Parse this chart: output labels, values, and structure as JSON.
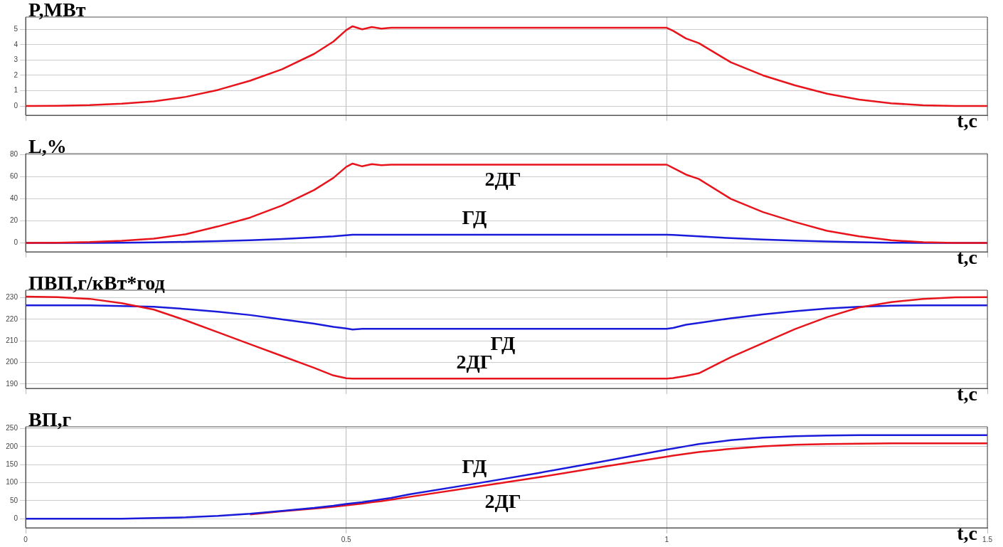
{
  "chart_data": [
    {
      "type": "line",
      "ylabel": "P,МВт",
      "xlabel": "t,с",
      "x": [
        0,
        0.05,
        0.1,
        0.15,
        0.2,
        0.25,
        0.3,
        0.35,
        0.4,
        0.45,
        0.48,
        0.5,
        0.51,
        0.525,
        0.54,
        0.555,
        0.57,
        0.6,
        0.7,
        0.8,
        0.9,
        1.0,
        1.01,
        1.03,
        1.05,
        1.1,
        1.15,
        1.2,
        1.25,
        1.3,
        1.35,
        1.4,
        1.45,
        1.5
      ],
      "series": [
        {
          "color": "#e8141b",
          "values": [
            0,
            0.02,
            0.06,
            0.15,
            0.3,
            0.6,
            1.05,
            1.65,
            2.4,
            3.4,
            4.2,
            4.95,
            5.2,
            5.0,
            5.15,
            5.05,
            5.1,
            5.1,
            5.1,
            5.1,
            5.1,
            5.1,
            4.9,
            4.4,
            4.1,
            2.85,
            2.0,
            1.35,
            0.8,
            0.42,
            0.18,
            0.05,
            0,
            0
          ]
        }
      ],
      "xlim": [
        0,
        1.5
      ],
      "xticks": [
        0,
        0.5,
        1,
        1.5
      ],
      "ylim": [
        -0.6,
        5.8
      ],
      "yticks": [
        0,
        1,
        2,
        3,
        4,
        5
      ],
      "grid": true,
      "tick_labels": "y"
    },
    {
      "type": "line",
      "ylabel": "L,%",
      "xlabel": "t,с",
      "x": [
        0,
        0.05,
        0.1,
        0.15,
        0.2,
        0.25,
        0.3,
        0.35,
        0.4,
        0.45,
        0.48,
        0.5,
        0.51,
        0.525,
        0.54,
        0.555,
        0.57,
        0.6,
        0.7,
        0.8,
        0.9,
        1.0,
        1.01,
        1.03,
        1.05,
        1.1,
        1.15,
        1.2,
        1.25,
        1.3,
        1.35,
        1.4,
        1.45,
        1.5
      ],
      "series": [
        {
          "name": "2ДГ",
          "color": "#e8141b",
          "values": [
            0,
            0.3,
            0.8,
            2,
            4,
            8,
            15,
            23,
            34,
            48,
            59,
            69,
            72,
            69.5,
            71.5,
            70.5,
            71,
            71,
            71,
            71,
            71,
            71,
            68,
            62,
            58,
            40,
            28,
            19,
            11,
            6,
            2.5,
            0.7,
            0,
            0
          ]
        },
        {
          "name": "ГД",
          "color": "#1a1adb",
          "values": [
            0,
            0,
            0.1,
            0.3,
            0.6,
            1,
            1.6,
            2.5,
            3.6,
            5,
            6,
            7,
            7.5,
            7.4,
            7.5,
            7.5,
            7.5,
            7.5,
            7.5,
            7.5,
            7.5,
            7.5,
            7.3,
            6.6,
            6,
            4.4,
            3.2,
            2.1,
            1.3,
            0.7,
            0.3,
            0.1,
            0,
            0
          ]
        }
      ],
      "xlim": [
        0,
        1.5
      ],
      "xticks": [
        0,
        0.5,
        1,
        1.5
      ],
      "ylim": [
        -8,
        81
      ],
      "yticks": [
        0,
        20,
        40,
        60,
        80
      ],
      "grid": true,
      "tick_labels": "y"
    },
    {
      "type": "line",
      "ylabel": "ПВП,г/кВт*год",
      "xlabel": "t,с",
      "x": [
        0,
        0.05,
        0.1,
        0.15,
        0.2,
        0.25,
        0.3,
        0.35,
        0.4,
        0.45,
        0.48,
        0.5,
        0.51,
        0.525,
        0.54,
        0.555,
        0.57,
        0.6,
        0.7,
        0.8,
        0.9,
        1.0,
        1.01,
        1.03,
        1.05,
        1.1,
        1.15,
        1.2,
        1.25,
        1.3,
        1.35,
        1.4,
        1.45,
        1.5
      ],
      "series": [
        {
          "name": "2ДГ",
          "color": "#e8141b",
          "values": [
            230.5,
            230.3,
            229.5,
            227.5,
            224.5,
            219.5,
            214,
            208.5,
            203,
            197.5,
            194,
            192.7,
            192.5,
            192.5,
            192.5,
            192.5,
            192.5,
            192.5,
            192.5,
            192.5,
            192.5,
            192.5,
            192.8,
            193.8,
            195,
            202.5,
            209,
            215.5,
            221,
            225.5,
            228,
            229.5,
            230.2,
            230.3
          ]
        },
        {
          "name": "ГД",
          "color": "#1a1adb",
          "values": [
            226.5,
            226.5,
            226.5,
            226.2,
            225.8,
            224.8,
            223.5,
            222,
            220,
            218,
            216.5,
            215.8,
            215.3,
            215.6,
            215.6,
            215.6,
            215.6,
            215.6,
            215.6,
            215.6,
            215.6,
            215.6,
            216,
            217.5,
            218.3,
            220.5,
            222.3,
            223.8,
            225,
            225.8,
            226.3,
            226.5,
            226.5,
            226.5
          ]
        }
      ],
      "xlim": [
        0,
        1.5
      ],
      "xticks": [
        0,
        0.5,
        1,
        1.5
      ],
      "ylim": [
        188,
        233.5
      ],
      "yticks": [
        190,
        200,
        210,
        220,
        230
      ],
      "grid": true,
      "tick_labels": "y"
    },
    {
      "type": "line",
      "ylabel": "ВП,г",
      "xlabel": "t,с",
      "x": [
        0,
        0.05,
        0.1,
        0.15,
        0.2,
        0.25,
        0.3,
        0.35,
        0.4,
        0.45,
        0.48,
        0.5,
        0.51,
        0.525,
        0.54,
        0.555,
        0.57,
        0.6,
        0.7,
        0.8,
        0.9,
        1.0,
        1.01,
        1.03,
        1.05,
        1.1,
        1.15,
        1.2,
        1.25,
        1.3,
        1.35,
        1.4,
        1.45,
        1.5
      ],
      "series": [
        {
          "name": "ГД",
          "color": "#1a1adb",
          "values": [
            0,
            0,
            0,
            0,
            2,
            4,
            8,
            14,
            22,
            30,
            36,
            41,
            43,
            46,
            50,
            54,
            58,
            68,
            97,
            127,
            159,
            192,
            195,
            201,
            207,
            218,
            225,
            229,
            231,
            232,
            232,
            232,
            232,
            232
          ]
        },
        {
          "name": "2ДГ",
          "color": "#e8141b",
          "values": [
            null,
            null,
            null,
            null,
            null,
            null,
            null,
            12,
            21,
            28,
            33,
            37,
            39,
            42,
            46,
            49,
            53,
            61,
            88,
            115,
            144,
            172,
            175,
            180,
            185,
            194,
            201,
            205,
            207,
            208,
            209,
            209,
            209,
            209
          ]
        }
      ],
      "xlim": [
        0,
        1.5
      ],
      "xticks": [
        0,
        0.5,
        1,
        1.5
      ],
      "ylim": [
        -25,
        255
      ],
      "yticks": [
        0,
        50,
        100,
        150,
        200,
        250
      ],
      "grid": true
    }
  ]
}
